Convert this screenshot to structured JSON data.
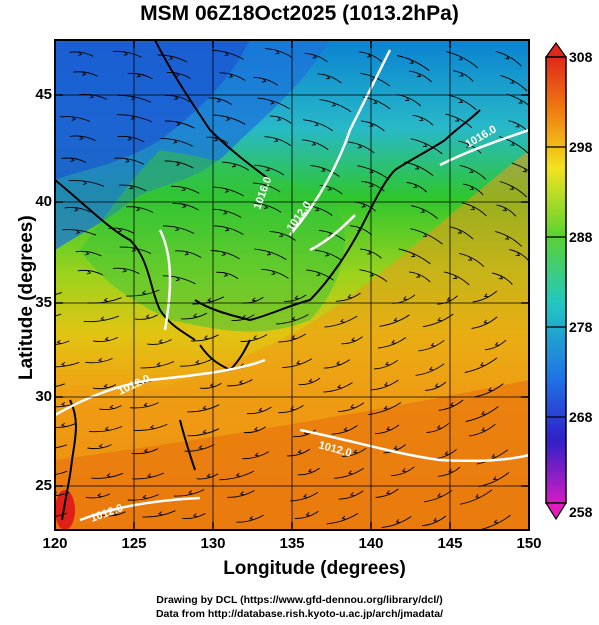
{
  "title": "MSM 06Z18Oct2025 (1013.2hPa)",
  "axes": {
    "xlabel": "Longitude (degrees)",
    "ylabel": "Latitude  (degrees)",
    "x_ticks": [
      "120",
      "125",
      "130",
      "135",
      "140",
      "145",
      "150"
    ],
    "y_ticks": [
      "45",
      "40",
      "35",
      "30",
      "25"
    ]
  },
  "colorbar": {
    "labels": [
      "308",
      "298",
      "288",
      "278",
      "268",
      "258"
    ]
  },
  "contour_labels": [
    "1016.0",
    "1012.0",
    "1016.0",
    "1012.0",
    "1012.0",
    "1012.0"
  ],
  "credits": {
    "line1": "Drawing by DCL (https://www.gfd-dennou.org/library/dcl/)",
    "line2": "Data from http://database.rish.kyoto-u.ac.jp/arch/jmadata/"
  },
  "colors": {
    "warm": "#e86d0a",
    "mid": "#2ec62e",
    "cold": "#1c6fe3",
    "contour": "#ffffff"
  },
  "chart_data": {
    "type": "heatmap",
    "title": "MSM 06Z18Oct2025 (1013.2hPa)",
    "xlabel": "Longitude (degrees)",
    "ylabel": "Latitude  (degrees)",
    "xlim": [
      120,
      150
    ],
    "ylim": [
      22.4,
      47.6
    ],
    "color_range": [
      258,
      308
    ],
    "colorbar_ticks": [
      258,
      268,
      278,
      288,
      298,
      308
    ],
    "overlays": [
      "streamlines",
      "pressure contours",
      "coastlines",
      "grid"
    ]
  }
}
